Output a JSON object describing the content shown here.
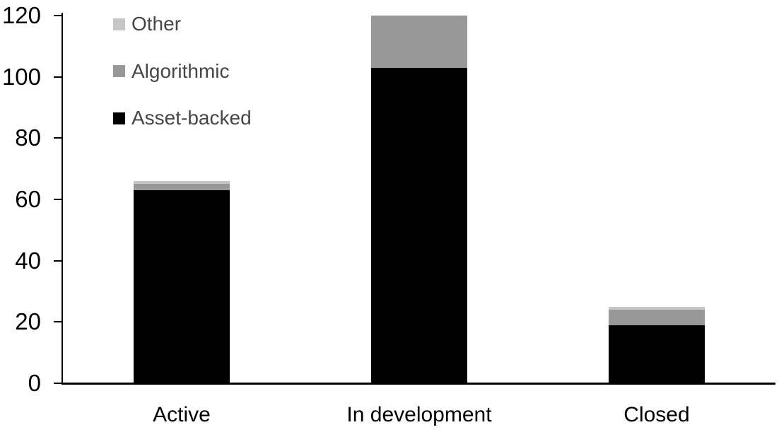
{
  "chart_data": {
    "type": "bar",
    "stacked": true,
    "title": "",
    "xlabel": "",
    "ylabel": "",
    "categories": [
      "Active",
      "In development",
      "Closed"
    ],
    "series": [
      {
        "name": "Asset-backed",
        "color": "#000000",
        "values": [
          63,
          103,
          19
        ]
      },
      {
        "name": "Algorithmic",
        "color": "#989898",
        "values": [
          2,
          17,
          5
        ]
      },
      {
        "name": "Other",
        "color": "#c6c6c6",
        "values": [
          1,
          0,
          1
        ]
      }
    ],
    "bar_totals": [
      66,
      120,
      25
    ],
    "ylim": [
      0,
      120
    ],
    "yticks": [
      0,
      20,
      40,
      60,
      80,
      100,
      120
    ],
    "grid": false,
    "legend": {
      "position": "top-left",
      "entries": [
        "Other",
        "Algorithmic",
        "Asset-backed"
      ]
    }
  },
  "style": {
    "background": "#ffffff",
    "axis_color": "#000000",
    "tick_label_color": "#000000",
    "category_label_color": "#000000",
    "legend_text_color": "#464646"
  }
}
